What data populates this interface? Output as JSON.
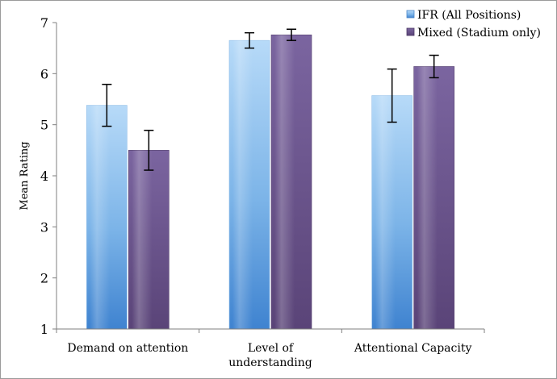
{
  "chart_data": {
    "type": "bar",
    "title": "",
    "xlabel": "",
    "ylabel": "Mean Rating",
    "ylim": [
      1,
      7
    ],
    "yticks": [
      1,
      2,
      3,
      4,
      5,
      6,
      7
    ],
    "grid": false,
    "legend_position": "top-right",
    "categories": [
      [
        "Demand on attention"
      ],
      [
        "Level of",
        "understanding"
      ],
      [
        "Attentional Capacity"
      ]
    ],
    "series": [
      {
        "name": "IFR (All Positions)",
        "color": "#5b9bd5",
        "values": [
          5.38,
          6.65,
          5.57
        ],
        "error": [
          0.41,
          0.15,
          0.52
        ]
      },
      {
        "name": "Mixed (Stadium only)",
        "color": "#604a7b",
        "values": [
          4.5,
          6.76,
          6.14
        ],
        "error": [
          0.39,
          0.11,
          0.22
        ]
      }
    ]
  }
}
